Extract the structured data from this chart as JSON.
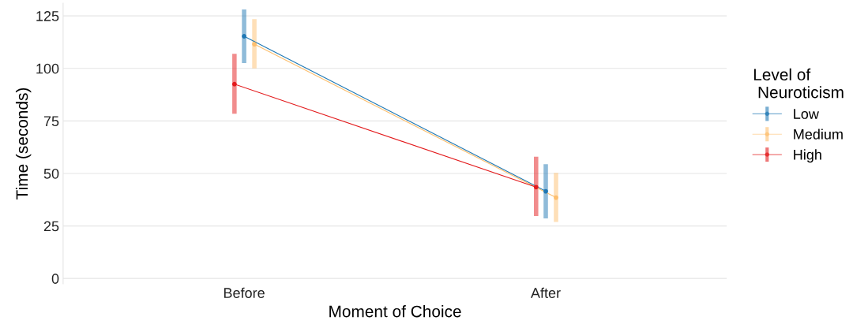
{
  "chart_data": {
    "type": "line",
    "xlabel": "Moment of Choice",
    "ylabel": "Time (seconds)",
    "legend_title": "Level of\n Neuroticism",
    "categories": [
      "Before",
      "After"
    ],
    "series": [
      {
        "name": "Low",
        "color": "#1f78b4",
        "values": [
          115.3,
          41.5
        ],
        "errors": [
          [
            102.5,
            128.1
          ],
          [
            28.6,
            54.4
          ]
        ]
      },
      {
        "name": "Medium",
        "color": "#fdbf6f",
        "values": [
          111.5,
          38.5
        ],
        "errors": [
          [
            100.0,
            123.5
          ],
          [
            26.9,
            50.3
          ]
        ]
      },
      {
        "name": "High",
        "color": "#e31a1c",
        "values": [
          92.5,
          43.5
        ],
        "errors": [
          [
            78.4,
            106.9
          ],
          [
            29.7,
            58.0
          ]
        ]
      }
    ],
    "ylim": [
      -2.5,
      131
    ],
    "yticks": [
      0,
      25,
      50,
      75,
      100,
      125
    ],
    "grid": "y",
    "legend": "right",
    "marker": "circle",
    "line_style": "solid"
  }
}
